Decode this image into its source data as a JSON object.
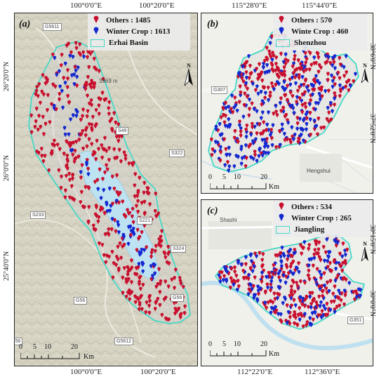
{
  "panels": {
    "a": {
      "tag": "(a)",
      "top_coords": [
        "100°0'0\"E",
        "100°20'0\"E"
      ],
      "bottom_coords": [
        "100°0'0\"E",
        "100°20'0\"E"
      ],
      "left_coords": [
        "26°20'0\"N",
        "26°0'0\"N",
        "25°40'0\"N"
      ],
      "legend": {
        "others": "Others : 1485",
        "winter": "Winter Crop : 1613",
        "boundary": "Erhai Basin"
      },
      "roads": [
        "G5611",
        "S49",
        "S322",
        "S233",
        "S221",
        "S324",
        "G56",
        "G5612",
        "G56",
        "G56"
      ],
      "elevation": "3969 m",
      "scale_ticks": [
        "0",
        "5",
        "10",
        "20"
      ],
      "scale_unit": "Km",
      "north": "N"
    },
    "b": {
      "tag": "(b)",
      "top_coords": [
        "115°28'0\"E",
        "115°44'0\"E"
      ],
      "right_coords": [
        "38°6'0\"N",
        "37°52'0\"N"
      ],
      "legend": {
        "others": "Others : 570",
        "winter": "Winte Crop : 460",
        "boundary": "Shenzhou"
      },
      "roads": [
        "G307"
      ],
      "places": [
        "Hengshui"
      ],
      "scale_ticks": [
        "0",
        "5",
        "10",
        "20"
      ],
      "scale_unit": "Km",
      "north": "N"
    },
    "c": {
      "tag": "(c)",
      "bottom_coords": [
        "112°22'0\"E",
        "112°36'0\"E"
      ],
      "right_coords": [
        "30°15'0\"N",
        "30°0'0\"N"
      ],
      "legend": {
        "others": "Others : 534",
        "winter": "Winter Crop : 265",
        "boundary": "Jiangling"
      },
      "roads": [
        "G351"
      ],
      "places": [
        "Shashi"
      ],
      "scale_ticks": [
        "0",
        "5",
        "10",
        "20"
      ],
      "scale_unit": "Km",
      "north": "N"
    }
  },
  "colors": {
    "others": "#c8102e",
    "winter": "#1428d0",
    "boundary": "#46d8c6",
    "lake": "#bde3f2",
    "terrain": "#d9d6c8"
  },
  "icons": {
    "others_symbol": "red-pin-icon",
    "winter_symbol": "blue-pin-icon",
    "north": "north-arrow-icon"
  }
}
